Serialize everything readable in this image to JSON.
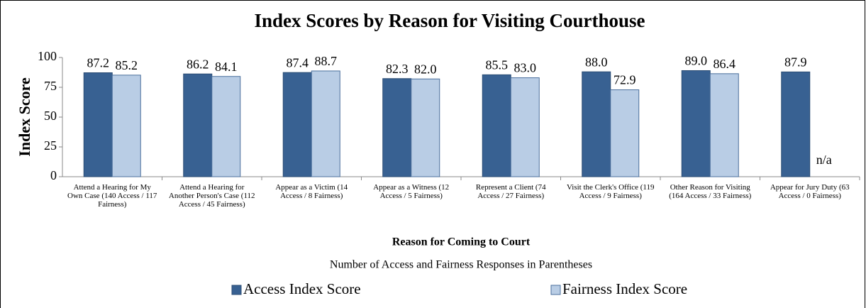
{
  "chart_data": {
    "type": "bar",
    "title": "Index Scores by Reason for Visiting Courthouse",
    "y_label": "Index Score",
    "x_label": "Reason for Coming to Court",
    "x_sublabel": "Number of Access and Fairness Responses in Parentheses",
    "categories": [
      "Attend a Hearing for My Own Case (140 Access / 117 Fairness)",
      "Attend a Hearing for Another Person's Case (112 Access / 45 Fairness)",
      "Appear as a Victim (14 Access / 8 Fairness)",
      "Appear as a Witness (12 Access / 5 Fairness)",
      "Represent a Client (74 Access / 27 Fairness)",
      "Visit the Clerk's Office (119 Access / 9 Fairness)",
      "Other Reason for Visiting (164 Access / 33 Fairness)",
      "Appear for Jury Duty (63 Access / 0 Fairness)"
    ],
    "series": [
      {
        "name": "Access Index Score",
        "color": "#386192",
        "border": "#2c4d74",
        "values": [
          87.2,
          86.2,
          87.4,
          82.3,
          85.5,
          88.0,
          89.0,
          87.9
        ],
        "value_labels": [
          "87.2",
          "86.2",
          "87.4",
          "82.3",
          "85.5",
          "88.0",
          "89.0",
          "87.9"
        ]
      },
      {
        "name": "Fairness Index Score",
        "color": "#b9cde5",
        "border": "#4a6f9c",
        "values": [
          85.2,
          84.1,
          88.7,
          82.0,
          83.0,
          72.9,
          86.4,
          null
        ],
        "value_labels": [
          "85.2",
          "84.1",
          "88.7",
          "82.0",
          "83.0",
          "72.9",
          "86.4",
          "n/a"
        ]
      }
    ],
    "ylim": [
      0,
      100
    ],
    "yticks": [
      0,
      25,
      50,
      75,
      100
    ],
    "grid": false,
    "legend": "bottom"
  }
}
